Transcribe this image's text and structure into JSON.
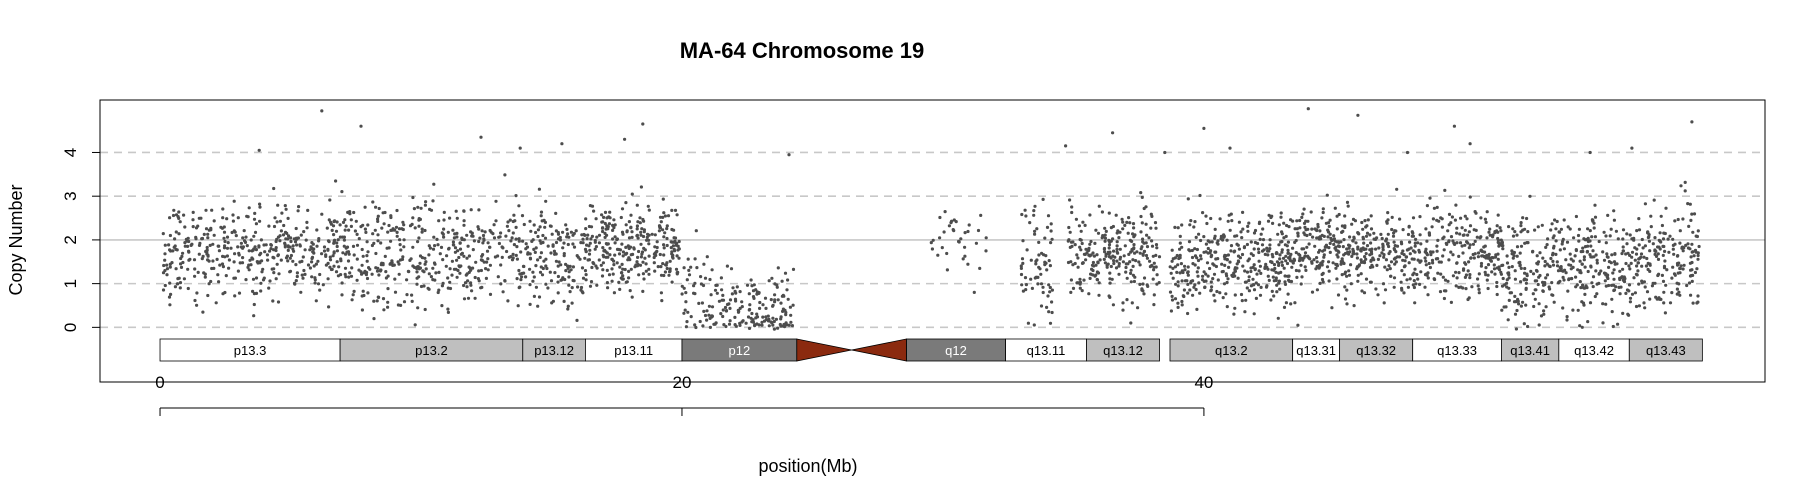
{
  "chart_data": {
    "type": "scatter",
    "title": "MA-64  Chromosome 19",
    "xlabel": "position(Mb)",
    "ylabel": "Copy Number",
    "xlim": [
      -2.3,
      61.5
    ],
    "ylim": [
      -1.25,
      5.2
    ],
    "x_ticks": [
      0,
      20,
      40
    ],
    "x_tick_labels": [
      "0",
      "20",
      "40"
    ],
    "y_ticks": [
      0,
      1,
      2,
      3,
      4
    ],
    "y_tick_labels": [
      "0",
      "1",
      "2",
      "3",
      "4"
    ],
    "dashed_gridlines_y": [
      0,
      1,
      3,
      4
    ],
    "solid_reference_y": 2,
    "point_color": "#4d4d4d",
    "gridline_color": "#c8c8c8",
    "cytobands": [
      {
        "name": "p13.3",
        "start": 0.0,
        "end": 6.9,
        "stain": "gneg"
      },
      {
        "name": "p13.2",
        "start": 6.9,
        "end": 13.9,
        "stain": "gpos25"
      },
      {
        "name": "p13.12",
        "start": 13.9,
        "end": 16.3,
        "stain": "gpos25"
      },
      {
        "name": "p13.11",
        "start": 16.3,
        "end": 20.0,
        "stain": "gneg"
      },
      {
        "name": "p12",
        "start": 20.0,
        "end": 24.4,
        "stain": "gpos75"
      },
      {
        "name": "q12",
        "start": 28.6,
        "end": 32.4,
        "stain": "gpos75"
      },
      {
        "name": "q13.11",
        "start": 32.4,
        "end": 35.5,
        "stain": "gneg"
      },
      {
        "name": "q13.12",
        "start": 35.5,
        "end": 38.3,
        "stain": "gpos25"
      },
      {
        "name": "q13.2",
        "start": 38.7,
        "end": 43.4,
        "stain": "gpos25"
      },
      {
        "name": "q13.31",
        "start": 43.4,
        "end": 45.2,
        "stain": "gneg"
      },
      {
        "name": "q13.32",
        "start": 45.2,
        "end": 48.0,
        "stain": "gpos25"
      },
      {
        "name": "q13.33",
        "start": 48.0,
        "end": 51.4,
        "stain": "gneg"
      },
      {
        "name": "q13.41",
        "start": 51.4,
        "end": 53.6,
        "stain": "gpos25"
      },
      {
        "name": "q13.42",
        "start": 53.6,
        "end": 56.3,
        "stain": "gneg"
      },
      {
        "name": "q13.43",
        "start": 56.3,
        "end": 59.1,
        "stain": "gpos25"
      }
    ],
    "centromere": {
      "start": 24.4,
      "end": 28.6,
      "color": "#8b2a0f"
    },
    "stain_colors": {
      "gneg": "#ffffff",
      "gpos25": "#bfbfbf",
      "gpos75": "#7a7a7a"
    },
    "point_segments": [
      {
        "x_start": 0.1,
        "x_end": 6.9,
        "median": 1.75,
        "spread": 0.55,
        "count": 420
      },
      {
        "x_start": 6.9,
        "x_end": 13.9,
        "median": 1.7,
        "spread": 0.6,
        "count": 430
      },
      {
        "x_start": 13.9,
        "x_end": 16.3,
        "median": 1.6,
        "spread": 0.55,
        "count": 150
      },
      {
        "x_start": 16.3,
        "x_end": 19.9,
        "median": 1.85,
        "spread": 0.5,
        "count": 300
      },
      {
        "x_start": 20.0,
        "x_end": 21.0,
        "median": 0.7,
        "spread": 0.6,
        "count": 40
      },
      {
        "x_start": 21.0,
        "x_end": 24.3,
        "median": 0.45,
        "spread": 0.45,
        "count": 160
      },
      {
        "x_start": 29.5,
        "x_end": 31.7,
        "median": 2.1,
        "spread": 0.5,
        "count": 35
      },
      {
        "x_start": 33.0,
        "x_end": 34.2,
        "median": 1.5,
        "spread": 0.6,
        "count": 70
      },
      {
        "x_start": 34.8,
        "x_end": 38.3,
        "median": 1.65,
        "spread": 0.5,
        "count": 260
      },
      {
        "x_start": 38.7,
        "x_end": 43.4,
        "median": 1.55,
        "spread": 0.55,
        "count": 380
      },
      {
        "x_start": 43.4,
        "x_end": 51.4,
        "median": 1.75,
        "spread": 0.5,
        "count": 620
      },
      {
        "x_start": 51.4,
        "x_end": 53.0,
        "median": 1.3,
        "spread": 0.6,
        "count": 120
      },
      {
        "x_start": 53.0,
        "x_end": 57.0,
        "median": 1.45,
        "spread": 0.6,
        "count": 300
      },
      {
        "x_start": 57.0,
        "x_end": 59.0,
        "median": 1.6,
        "spread": 0.6,
        "count": 150
      }
    ],
    "outlier_points": [
      [
        6.2,
        4.95
      ],
      [
        7.7,
        4.6
      ],
      [
        12.3,
        4.35
      ],
      [
        17.8,
        4.3
      ],
      [
        18.5,
        4.65
      ],
      [
        15.4,
        4.2
      ],
      [
        13.8,
        4.1
      ],
      [
        3.8,
        4.05
      ],
      [
        24.1,
        3.95
      ],
      [
        34.7,
        4.15
      ],
      [
        36.5,
        4.45
      ],
      [
        38.5,
        4.0
      ],
      [
        40.0,
        4.55
      ],
      [
        41.0,
        4.1
      ],
      [
        44.0,
        5.0
      ],
      [
        45.9,
        4.85
      ],
      [
        47.8,
        4.0
      ],
      [
        49.6,
        4.6
      ],
      [
        50.2,
        4.2
      ],
      [
        54.8,
        4.0
      ],
      [
        56.4,
        4.1
      ],
      [
        58.7,
        4.7
      ],
      [
        8.2,
        0.2
      ],
      [
        37.2,
        0.1
      ],
      [
        43.6,
        0.05
      ],
      [
        54.5,
        0.0
      ],
      [
        31.2,
        0.8
      ]
    ]
  }
}
